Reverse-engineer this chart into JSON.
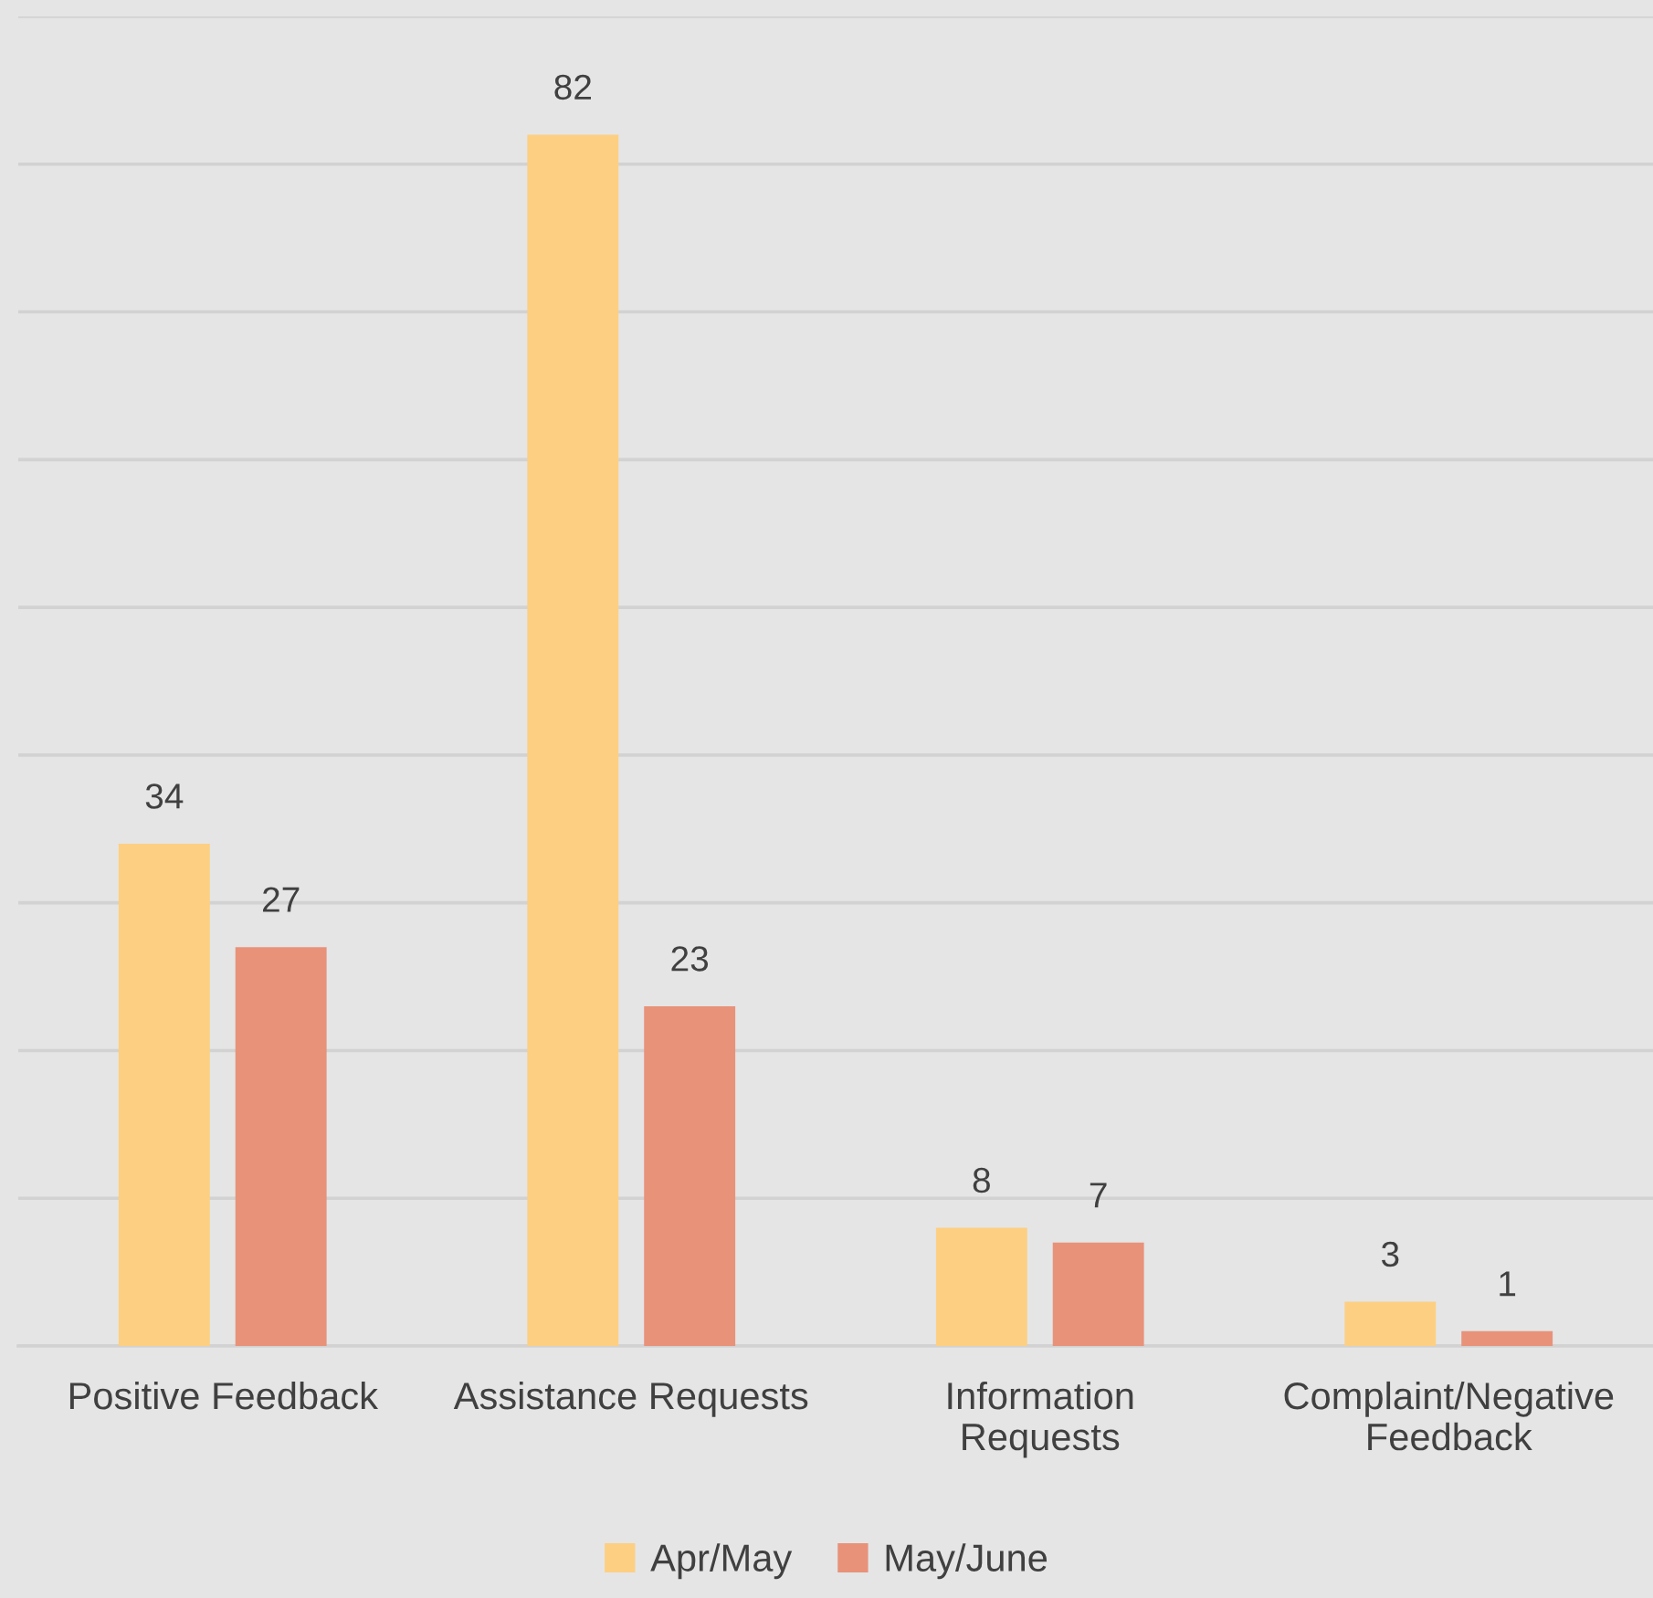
{
  "chart_data": {
    "type": "bar",
    "categories": [
      "Positive Feedback",
      "Assistance Requests",
      "Information\nRequests",
      "Complaint/Negative\nFeedback"
    ],
    "series": [
      {
        "name": "Apr/May",
        "color": "#fdcf82",
        "values": [
          34,
          82,
          8,
          3
        ]
      },
      {
        "name": "May/June",
        "color": "#e8927a",
        "values": [
          27,
          23,
          7,
          1
        ]
      }
    ],
    "ylim": [
      0,
      90
    ],
    "yticks": [
      {
        "value": 0,
        "label": null
      },
      {
        "value": 10,
        "label": null
      },
      {
        "value": 20,
        "label": null
      },
      {
        "value": 30,
        "label": null
      },
      {
        "value": 40,
        "label": null
      },
      {
        "value": 50,
        "label": null
      },
      {
        "value": 60,
        "label": null
      },
      {
        "value": 70,
        "label": null
      },
      {
        "value": 80,
        "label": null
      },
      {
        "value": 90,
        "label": null
      }
    ],
    "grid": "y",
    "legend": "bottom",
    "data_labels": true,
    "tick_labels": "x"
  }
}
